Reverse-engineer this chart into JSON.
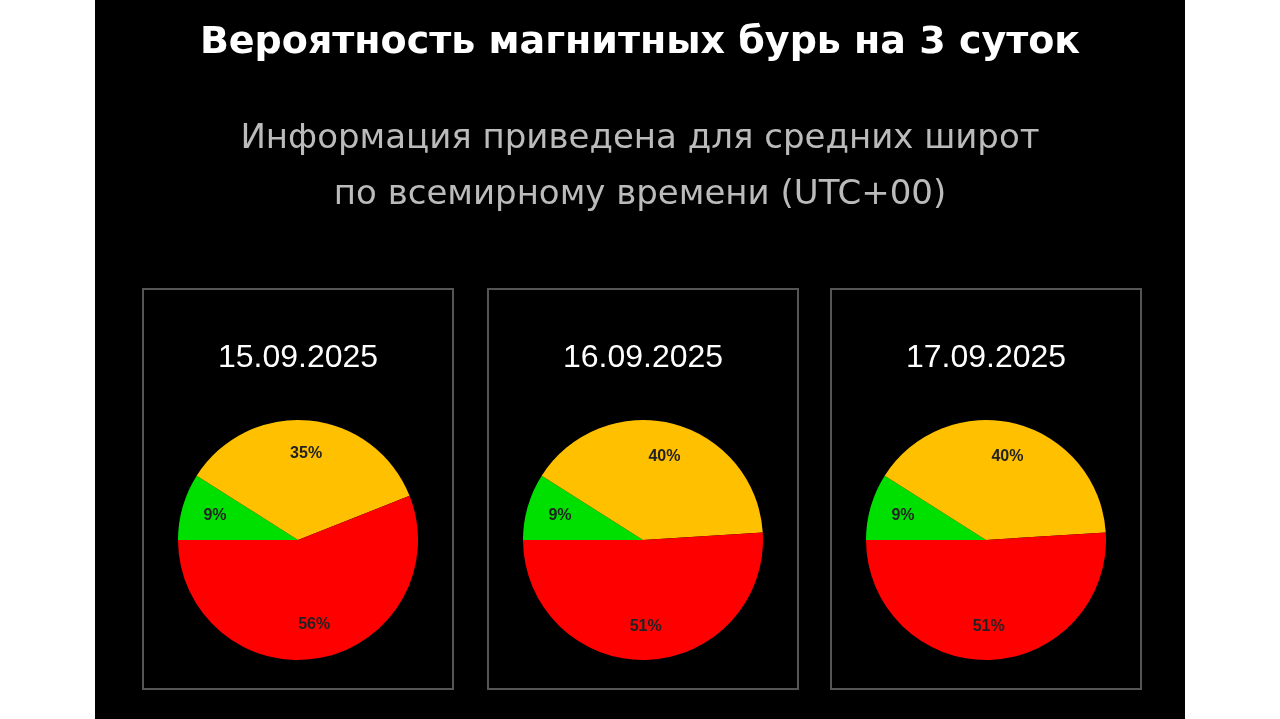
{
  "chart_data": [
    {
      "type": "other",
      "title": "Вероятность магнитных бурь на 3 суток",
      "subtitle": "Информация приведена для средних широт по всемирному времени (UTC+00)"
    },
    {
      "type": "pie",
      "title": "15.09.2025",
      "categories": [
        null,
        null,
        null
      ],
      "values": [
        9,
        35,
        56
      ],
      "colors": [
        "#00e000",
        "#ffc000",
        "#ff0000"
      ],
      "value_labels": [
        "9%",
        "35%",
        "56%"
      ]
    },
    {
      "type": "pie",
      "title": "16.09.2025",
      "categories": [
        null,
        null,
        null
      ],
      "values": [
        9,
        40,
        51
      ],
      "colors": [
        "#00e000",
        "#ffc000",
        "#ff0000"
      ],
      "value_labels": [
        "9%",
        "40%",
        "51%"
      ]
    },
    {
      "type": "pie",
      "title": "17.09.2025",
      "categories": [
        null,
        null,
        null
      ],
      "values": [
        9,
        40,
        51
      ],
      "colors": [
        "#00e000",
        "#ffc000",
        "#ff0000"
      ],
      "value_labels": [
        "9%",
        "40%",
        "51%"
      ]
    }
  ]
}
